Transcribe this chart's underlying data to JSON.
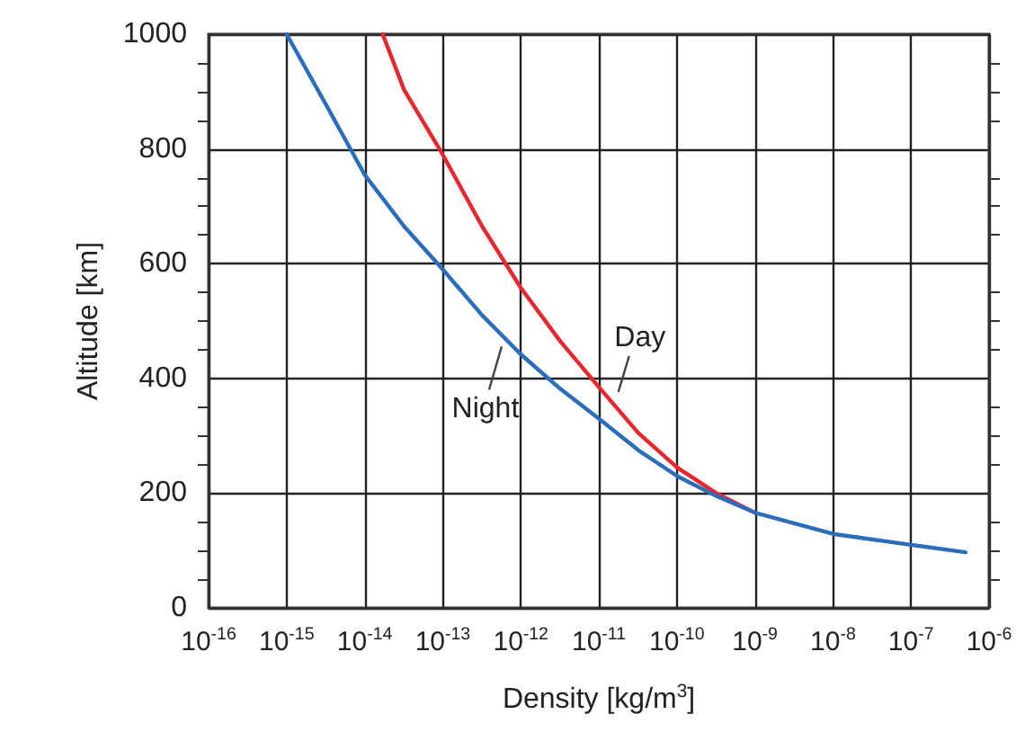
{
  "chart_data": {
    "type": "line",
    "xlabel": "Density [kg/m$^{3}$]",
    "ylabel": "Altitude [km]",
    "log": "x",
    "grid": true,
    "marker": "none",
    "line_style": "solid",
    "xlim": [
      1e-16,
      1e-06
    ],
    "ylim": [
      0,
      1000
    ],
    "xticks": [
      {
        "value": 1e-16,
        "label": "10$^{-16}$"
      },
      {
        "value": 1e-15,
        "label": "10$^{-15}$"
      },
      {
        "value": 1e-14,
        "label": "10$^{-14}$"
      },
      {
        "value": 1e-13,
        "label": "10$^{-13}$"
      },
      {
        "value": 1e-12,
        "label": "10$^{-12}$"
      },
      {
        "value": 1e-11,
        "label": "10$^{-11}$"
      },
      {
        "value": 1e-10,
        "label": "10$^{-10}$"
      },
      {
        "value": 1e-09,
        "label": "10$^{-9}$"
      },
      {
        "value": 1e-08,
        "label": "10$^{-8}$"
      },
      {
        "value": 1e-07,
        "label": "10$^{-7}$"
      },
      {
        "value": 1e-06,
        "label": "10$^{-6}$"
      }
    ],
    "yticks": [
      0,
      200,
      400,
      600,
      800,
      1000
    ],
    "series": [
      {
        "color": "#2a6ebb",
        "x": [
          1e-15,
          3.2e-15,
          1e-14,
          3.2e-14,
          1e-13,
          3.2e-13,
          1e-12,
          3.2e-12,
          1e-11,
          3.2e-11,
          1e-10,
          3.2e-10,
          1e-09,
          1e-08,
          1e-07,
          5e-07
        ],
        "values": [
          1000,
          877,
          755,
          665,
          590,
          510,
          442,
          382,
          330,
          275,
          230,
          195,
          166,
          129,
          110,
          97
        ]
      },
      {
        "color": "#e8262e",
        "x": [
          1.7e-14,
          3.2e-14,
          1e-13,
          3.2e-13,
          1e-12,
          3.2e-12,
          1e-11,
          3.2e-11,
          1e-10,
          3.2e-10,
          1e-09
        ],
        "values": [
          1000,
          903,
          790,
          665,
          558,
          465,
          385,
          305,
          245,
          200,
          166
        ]
      }
    ],
    "annotations": [
      {
        "text": "Day",
        "x": 1.6e-11,
        "y": 370
      },
      {
        "text": "Night",
        "x": 6e-13,
        "y": 465
      }
    ]
  }
}
